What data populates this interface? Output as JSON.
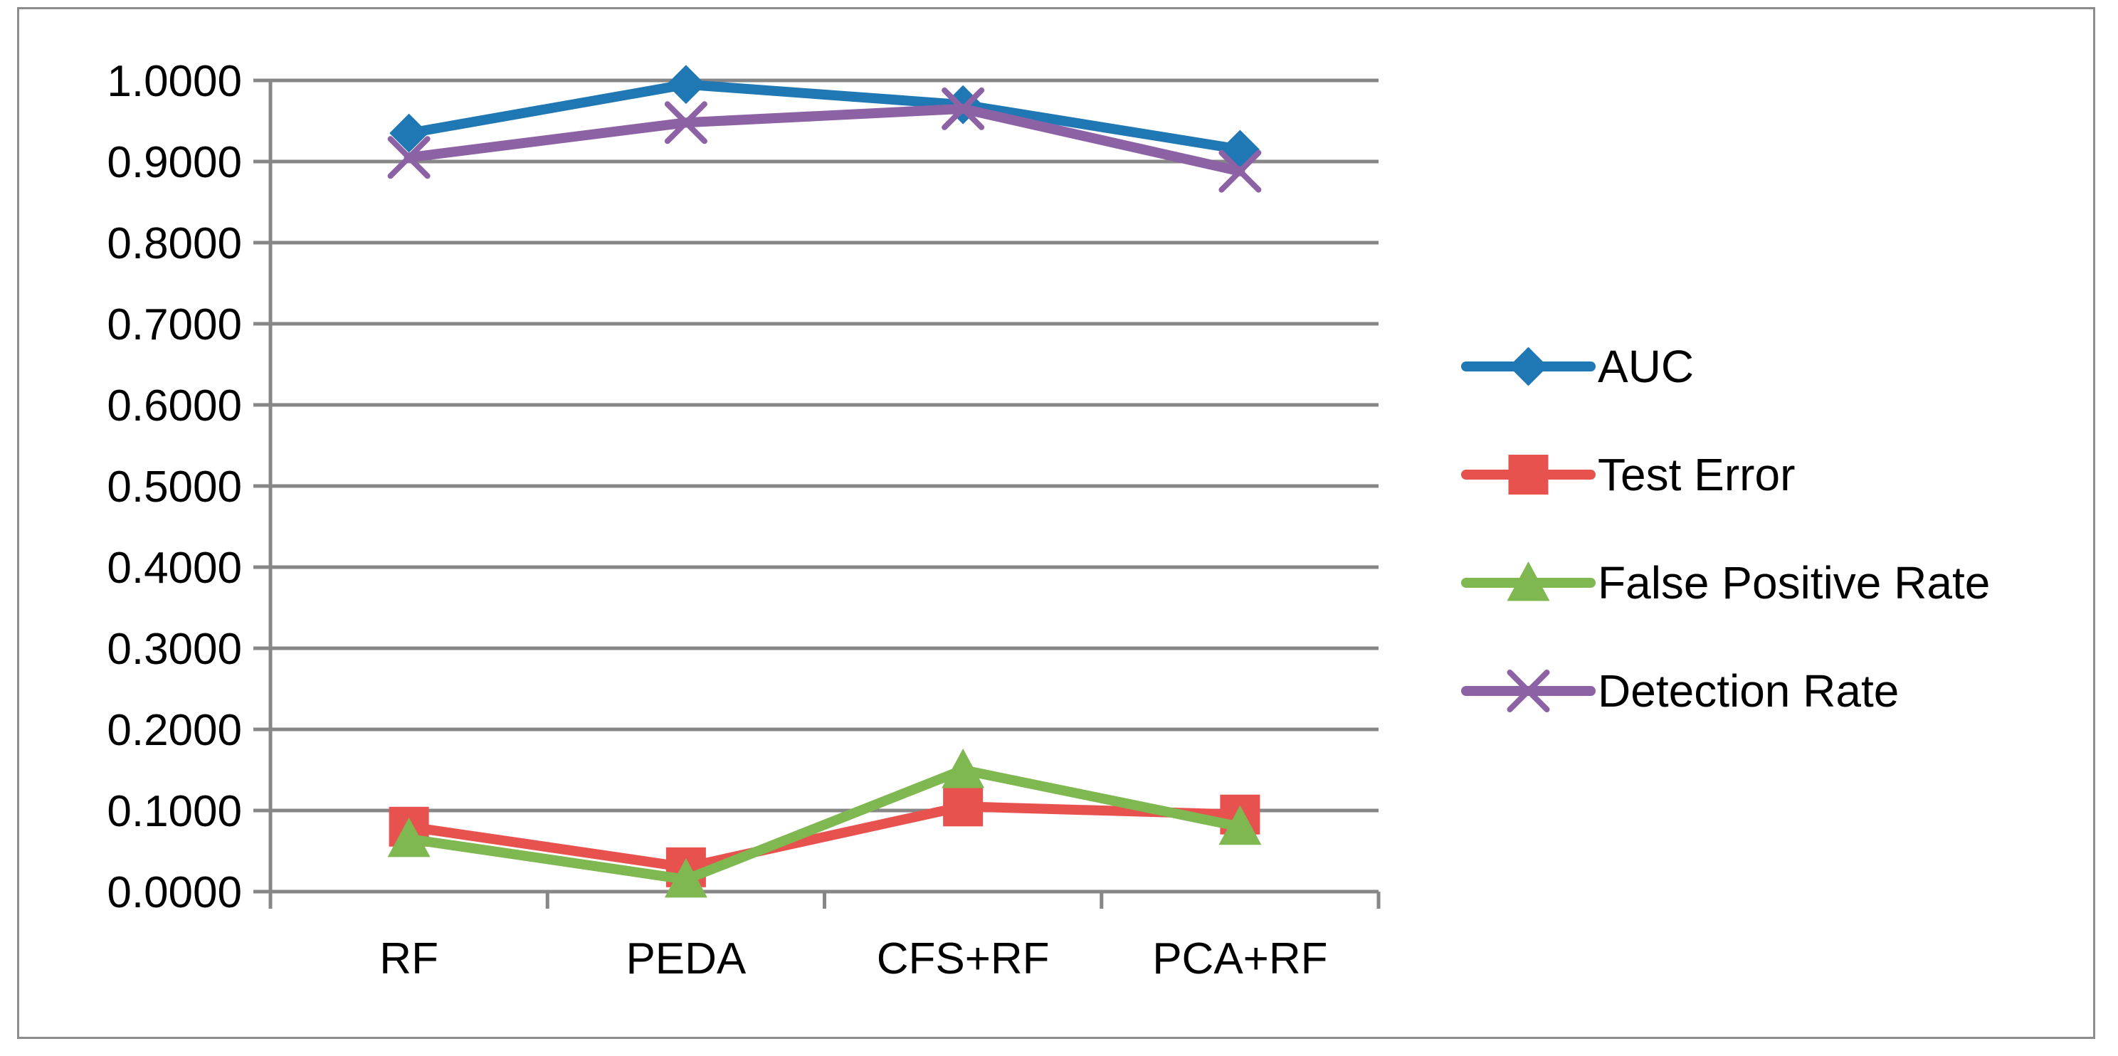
{
  "chart_data": {
    "type": "line",
    "title": "",
    "xlabel": "",
    "ylabel": "",
    "categories": [
      "RF",
      "PEDA",
      "CFS+RF",
      "PCA+RF"
    ],
    "ylim": [
      0,
      1
    ],
    "yticks": [
      "0.0000",
      "0.1000",
      "0.2000",
      "0.3000",
      "0.4000",
      "0.5000",
      "0.6000",
      "0.7000",
      "0.8000",
      "0.9000",
      "1.0000"
    ],
    "grid": true,
    "legend_position": "right",
    "series": [
      {
        "name": "AUC",
        "color": "#1F77B4",
        "marker": "diamond",
        "values": [
          0.935,
          0.995,
          0.97,
          0.915
        ]
      },
      {
        "name": "Test Error",
        "color": "#E8524E",
        "marker": "square",
        "values": [
          0.08,
          0.03,
          0.105,
          0.095
        ]
      },
      {
        "name": "False Positive Rate",
        "color": "#7FB850",
        "marker": "triangle",
        "values": [
          0.065,
          0.015,
          0.15,
          0.08
        ]
      },
      {
        "name": "Detection Rate",
        "color": "#8C62A5",
        "marker": "x",
        "values": [
          0.905,
          0.948,
          0.965,
          0.888
        ]
      }
    ]
  }
}
